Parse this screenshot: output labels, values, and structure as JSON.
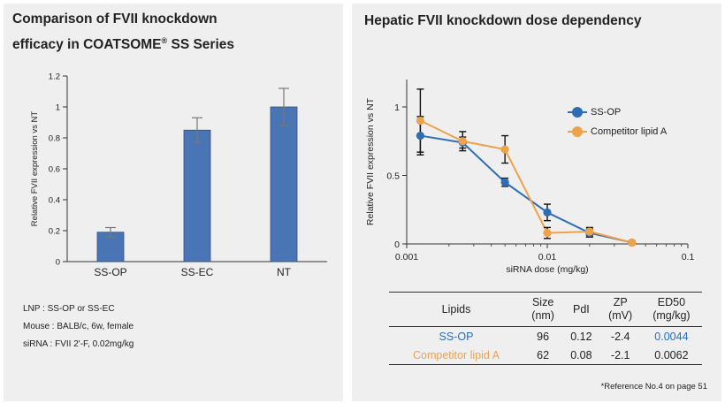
{
  "colors": {
    "bar": "#4a75b5",
    "ss_op": "#2d6db5",
    "competitor": "#eea24a",
    "axis": "#333333"
  },
  "left_panel": {
    "title_line1": "Comparison of FVII knockdown",
    "title_line2": "efficacy in COATSOME",
    "title_reg": "®",
    "title_line2_end": " SS Series",
    "notes": [
      "LNP : SS-OP or SS-EC",
      "Mouse : BALB/c, 6w, female",
      "siRNA : FVII 2'-F, 0.02mg/kg"
    ]
  },
  "right_panel": {
    "title": "Hepatic FVII knockdown dose dependency",
    "legend": [
      {
        "name": "SS-OP",
        "color": "#2d6db5"
      },
      {
        "name": "Competitor lipid A",
        "color": "#eea24a"
      }
    ],
    "table": {
      "headers": [
        {
          "l1": "Lipids",
          "l2": ""
        },
        {
          "l1": "Size",
          "l2": "(nm)"
        },
        {
          "l1": "PdI",
          "l2": ""
        },
        {
          "l1": "ZP",
          "l2": "(mV)"
        },
        {
          "l1": "ED50",
          "l2": "(mg/kg)"
        }
      ],
      "rows": [
        {
          "lipid": "SS-OP",
          "size": "96",
          "pdi": "0.12",
          "zp": "-2.4",
          "ed50": "0.0044"
        },
        {
          "lipid": "Competitor lipid A",
          "size": "62",
          "pdi": "0.08",
          "zp": "-2.1",
          "ed50": "0.0062"
        }
      ]
    },
    "reference": "*Reference No.4 on page 51"
  },
  "chart_data": [
    {
      "type": "bar",
      "ylabel": "Relative FVII expression vs NT",
      "xlabel": "",
      "categories": [
        "SS-OP",
        "SS-EC",
        "NT"
      ],
      "values": [
        0.19,
        0.85,
        1.0
      ],
      "errors": [
        0.03,
        0.08,
        0.12
      ],
      "ylim": [
        0,
        1.2
      ],
      "yticks": [
        "0",
        "0.2",
        "0.4",
        "0.6",
        "0.8",
        "1",
        "1.2"
      ],
      "grid": false
    },
    {
      "type": "line",
      "xscale": "log",
      "xlabel": "siRNA dose (mg/kg)",
      "ylabel": "Relative FVII expression vs NT",
      "xlim": [
        0.001,
        0.1
      ],
      "ylim": [
        0,
        1.2
      ],
      "xticks": [
        "0.001",
        "0.01",
        "0.1"
      ],
      "yticks": [
        "0",
        "0.5",
        "1"
      ],
      "legend_position": "top-right",
      "grid": false,
      "series": [
        {
          "name": "SS-OP",
          "x": [
            0.00125,
            0.0025,
            0.005,
            0.01,
            0.02,
            0.04
          ],
          "y": [
            0.79,
            0.74,
            0.45,
            0.23,
            0.08,
            0.01
          ],
          "err": [
            0.14,
            0.04,
            0.03,
            0.06,
            0.03,
            0.01
          ]
        },
        {
          "name": "Competitor lipid A",
          "x": [
            0.00125,
            0.0025,
            0.005,
            0.01,
            0.02,
            0.04
          ],
          "y": [
            0.9,
            0.75,
            0.69,
            0.08,
            0.09,
            0.01
          ],
          "err": [
            0.23,
            0.07,
            0.1,
            0.04,
            0.03,
            0.01
          ]
        }
      ]
    }
  ]
}
